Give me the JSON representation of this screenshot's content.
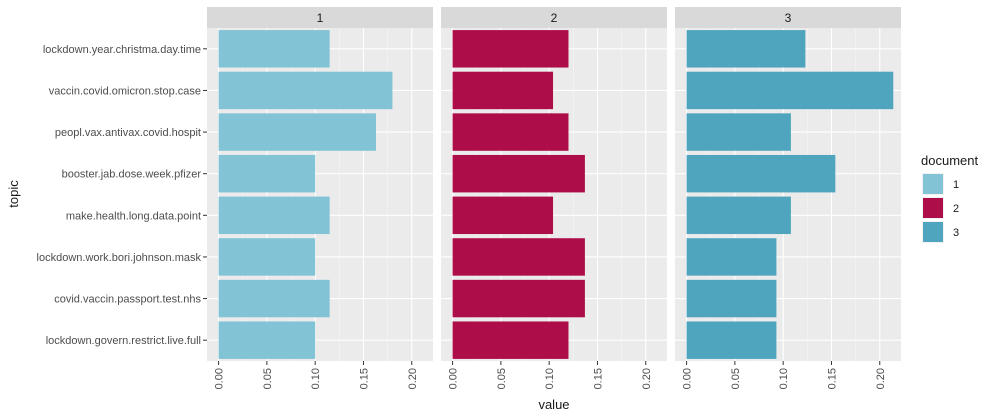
{
  "chart_data": {
    "type": "bar",
    "orientation": "horizontal",
    "facet_label": "",
    "xlabel": "value",
    "ylabel": "topic",
    "xlim": [
      -0.012,
      0.222
    ],
    "x_ticks": [
      "0.00",
      "0.05",
      "0.10",
      "0.15",
      "0.20"
    ],
    "x_tick_values": [
      0,
      0.05,
      0.1,
      0.15,
      0.2
    ],
    "grid": true,
    "legend": {
      "title": "document",
      "placement": "right",
      "entries": [
        {
          "label": "1",
          "color": "#82c4d5"
        },
        {
          "label": "2",
          "color": "#ad0e4a"
        },
        {
          "label": "3",
          "color": "#4fa5be"
        }
      ]
    },
    "categories": [
      "lockdown.year.christma.day.time",
      "vaccin.covid.omicron.stop.case",
      "peopl.vax.antivax.covid.hospit",
      "booster.jab.dose.week.pfizer",
      "make.health.long.data.point",
      "lockdown.work.bori.johnson.mask",
      "covid.vaccin.passport.test.nhs",
      "lockdown.govern.restrict.live.full"
    ],
    "series": [
      {
        "name": "1",
        "color": "#82c4d5",
        "values": [
          0.115,
          0.18,
          0.163,
          0.1,
          0.115,
          0.1,
          0.115,
          0.1
        ]
      },
      {
        "name": "2",
        "color": "#ad0e4a",
        "values": [
          0.12,
          0.104,
          0.12,
          0.137,
          0.104,
          0.137,
          0.137,
          0.12
        ]
      },
      {
        "name": "3",
        "color": "#4fa5be",
        "values": [
          0.123,
          0.214,
          0.108,
          0.154,
          0.108,
          0.093,
          0.093,
          0.093
        ]
      }
    ]
  }
}
